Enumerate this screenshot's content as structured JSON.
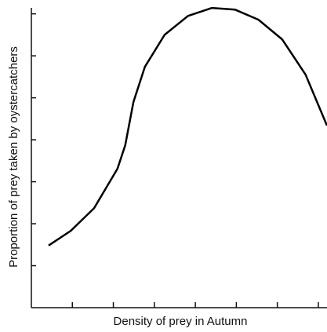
{
  "chart_data": {
    "type": "line",
    "x_label": "Density of prey in Autumn",
    "y_label": "Proportion of prey taken by oystercatchers",
    "x": [
      0.42,
      0.96,
      1.53,
      2.1,
      2.29,
      2.49,
      2.77,
      3.25,
      3.82,
      4.4,
      4.97,
      5.54,
      6.12,
      6.69,
      7.21
    ],
    "series": [
      {
        "color": "#000000",
        "values": [
          1.48,
          1.83,
          2.37,
          3.31,
          3.87,
          4.9,
          5.74,
          6.5,
          6.95,
          7.14,
          7.1,
          6.86,
          6.39,
          5.55,
          4.34
        ]
      }
    ],
    "xlim": [
      0,
      7.25
    ],
    "ylim": [
      0,
      7.33
    ],
    "xticks": [
      1,
      2,
      3,
      4,
      5,
      6,
      7
    ],
    "yticks": [
      1,
      2,
      3,
      4,
      5,
      6,
      7
    ]
  }
}
